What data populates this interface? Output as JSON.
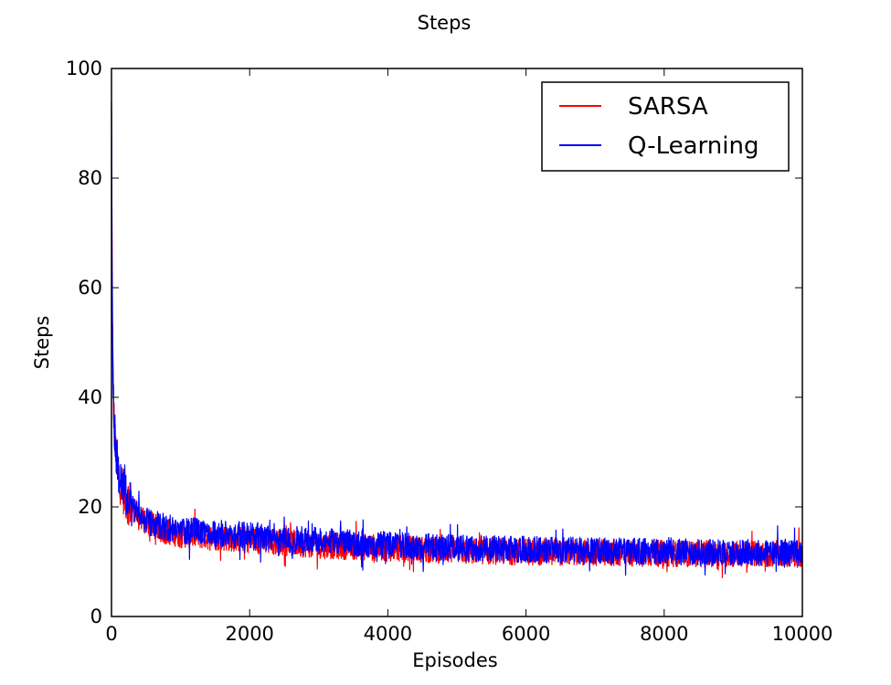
{
  "chart_data": {
    "type": "line",
    "title": "Steps",
    "xlabel": "Episodes",
    "ylabel": "Steps",
    "xlim": [
      0,
      10000
    ],
    "ylim": [
      0,
      100
    ],
    "xticks": [
      0,
      2000,
      4000,
      6000,
      8000,
      10000
    ],
    "yticks": [
      0,
      20,
      40,
      60,
      80,
      100
    ],
    "grid": false,
    "legend_position": "top-right",
    "series": [
      {
        "name": "SARSA",
        "color": "#ff0000",
        "x": [
          0,
          10,
          20,
          30,
          50,
          75,
          100,
          150,
          200,
          300,
          400,
          500,
          600,
          800,
          1000,
          1500,
          2000,
          2500,
          3000,
          4000,
          5000,
          6000,
          7000,
          8000,
          9000,
          10000
        ],
        "y": [
          91,
          60,
          46,
          38,
          32,
          28,
          26,
          24,
          22,
          20,
          18,
          17,
          16.5,
          15.5,
          15,
          14.5,
          14,
          13.5,
          13,
          12.5,
          12,
          11.8,
          11.6,
          11.5,
          11.4,
          11.3
        ],
        "noise_amplitude": 2.5
      },
      {
        "name": "Q-Learning",
        "color": "#0000ff",
        "x": [
          0,
          10,
          20,
          30,
          50,
          75,
          100,
          150,
          200,
          300,
          400,
          500,
          600,
          800,
          1000,
          1500,
          2000,
          2500,
          3000,
          4000,
          5000,
          6000,
          7000,
          8000,
          9000,
          10000
        ],
        "y": [
          90,
          62,
          48,
          40,
          33,
          29,
          27,
          25,
          23,
          20.5,
          18.5,
          17.5,
          17,
          16.2,
          15.8,
          15.2,
          14.8,
          14.2,
          13.8,
          13,
          12.5,
          12.2,
          12,
          11.8,
          11.7,
          11.6
        ],
        "noise_amplitude": 2.5
      }
    ]
  }
}
